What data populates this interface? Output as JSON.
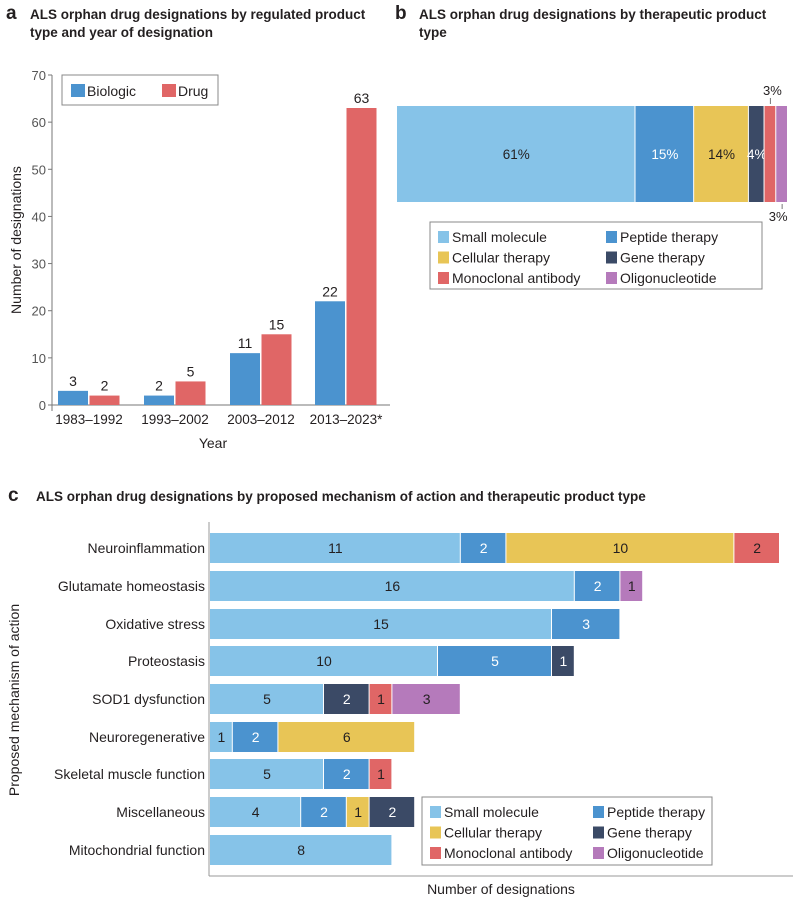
{
  "chart_data": [
    {
      "panel": "a",
      "type": "bar",
      "title": "ALS orphan drug designations by regulated product type and year of designation",
      "xlabel": "Year",
      "ylabel": "Number of designations",
      "ylim": [
        0,
        70
      ],
      "yticks": [
        0,
        10,
        20,
        30,
        40,
        50,
        60,
        70
      ],
      "categories": [
        "1983–1992",
        "1993–2002",
        "2003–2012",
        "2013–2023*"
      ],
      "series": [
        {
          "name": "Biologic",
          "color": "#4b93cf",
          "values": [
            3,
            2,
            11,
            22
          ]
        },
        {
          "name": "Drug",
          "color": "#e06666",
          "values": [
            2,
            5,
            15,
            63
          ]
        }
      ],
      "legend": "top-left",
      "grid": false
    },
    {
      "panel": "b",
      "type": "bar",
      "orientation": "horizontal-stacked-100",
      "title": "ALS orphan drug designations by therapeutic product type",
      "series": [
        {
          "name": "Small molecule",
          "color": "#86c3e8",
          "value": 61,
          "label": "61%"
        },
        {
          "name": "Peptide therapy",
          "color": "#4b93cf",
          "value": 15,
          "label": "15%"
        },
        {
          "name": "Cellular therapy",
          "color": "#e8c556",
          "value": 14,
          "label": "14%"
        },
        {
          "name": "Gene therapy",
          "color": "#3b4a66",
          "value": 4,
          "label": "4%"
        },
        {
          "name": "Monoclonal antibody",
          "color": "#e06666",
          "value": 3,
          "label": "3%"
        },
        {
          "name": "Oligonucleotide",
          "color": "#b57abb",
          "value": 3,
          "label": "3%"
        }
      ],
      "legend": "bottom"
    },
    {
      "panel": "c",
      "type": "bar",
      "orientation": "horizontal-stacked",
      "title": "ALS orphan drug designations by proposed mechanism of action and therapeutic product type",
      "xlabel": "Number of designations",
      "ylabel": "Proposed mechanism of action",
      "categories": [
        "Neuroinflammation",
        "Glutamate homeostasis",
        "Oxidative stress",
        "Proteostasis",
        "SOD1 dysfunction",
        "Neuroregenerative",
        "Skeletal muscle function",
        "Miscellaneous",
        "Mitochondrial function"
      ],
      "series": [
        {
          "name": "Small molecule",
          "color": "#86c3e8",
          "values": [
            11,
            16,
            15,
            10,
            5,
            1,
            5,
            4,
            8
          ]
        },
        {
          "name": "Peptide therapy",
          "color": "#4b93cf",
          "values": [
            2,
            2,
            3,
            5,
            0,
            2,
            2,
            2,
            0
          ]
        },
        {
          "name": "Cellular therapy",
          "color": "#e8c556",
          "values": [
            10,
            0,
            0,
            0,
            0,
            6,
            0,
            1,
            0
          ]
        },
        {
          "name": "Gene therapy",
          "color": "#3b4a66",
          "values": [
            0,
            0,
            0,
            1,
            2,
            0,
            0,
            2,
            0
          ]
        },
        {
          "name": "Monoclonal antibody",
          "color": "#e06666",
          "values": [
            2,
            0,
            0,
            0,
            1,
            0,
            1,
            0,
            0
          ]
        },
        {
          "name": "Oligonucleotide",
          "color": "#b57abb",
          "values": [
            0,
            1,
            0,
            0,
            3,
            0,
            0,
            0,
            0
          ]
        }
      ],
      "legend": "bottom-right"
    }
  ]
}
